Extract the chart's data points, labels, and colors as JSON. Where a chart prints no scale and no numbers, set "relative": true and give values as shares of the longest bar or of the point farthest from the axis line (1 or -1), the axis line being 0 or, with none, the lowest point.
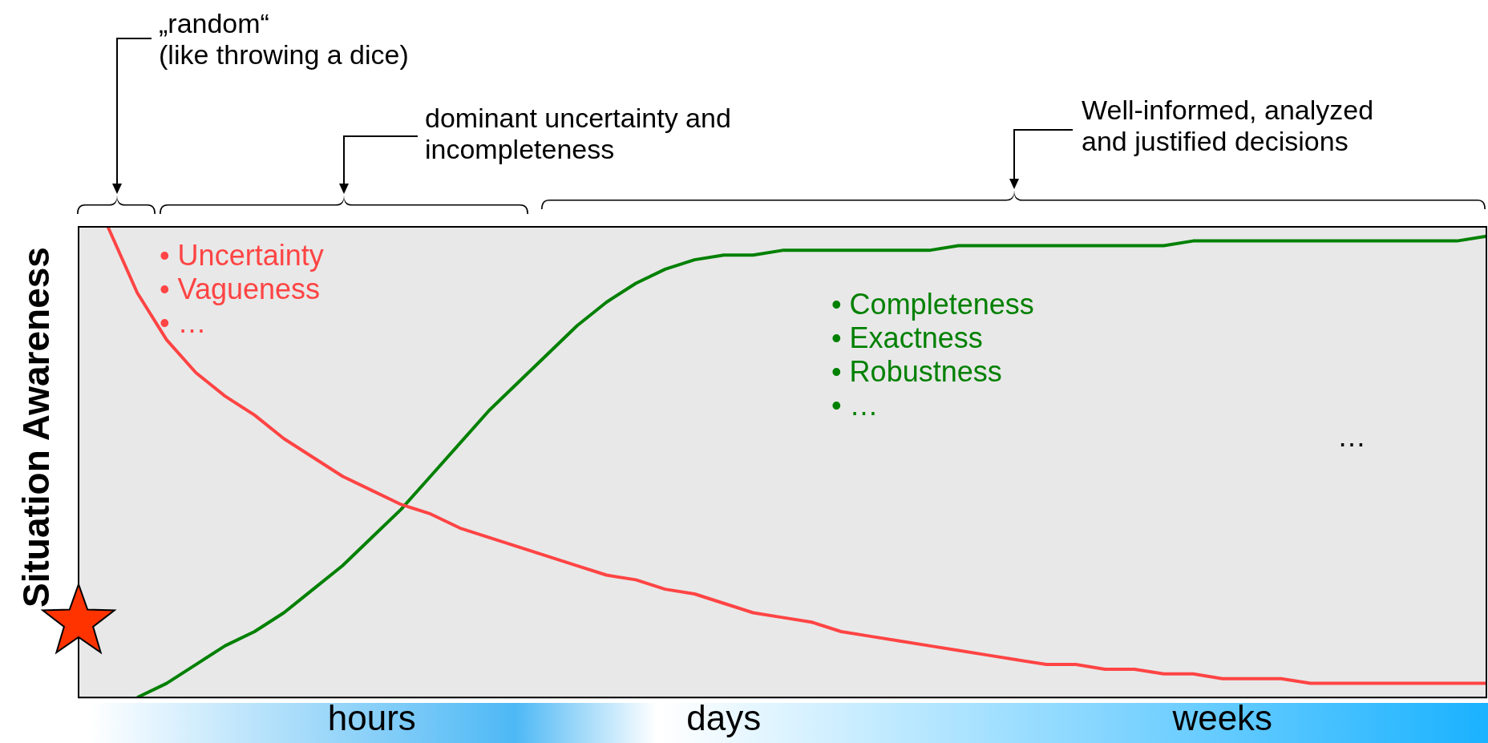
{
  "chart_data": {
    "type": "line",
    "ylabel": "Situation Awareness",
    "relative": true,
    "marker": "none",
    "line_style": "solid",
    "categories": [
      null,
      null,
      null,
      null,
      null,
      null,
      null,
      null,
      null,
      null,
      "hours",
      null,
      null,
      null,
      null,
      null,
      null,
      null,
      null,
      null,
      null,
      null,
      "days",
      null,
      null,
      null,
      null,
      null,
      null,
      null,
      null,
      null,
      null,
      null,
      null,
      null,
      null,
      null,
      null,
      "weeks",
      null,
      null,
      null,
      null,
      null,
      null,
      null,
      null,
      null
    ],
    "series": [
      {
        "color": "#ff4444",
        "values": [
          null,
          1.0,
          0.86,
          0.76,
          0.69,
          0.64,
          0.6,
          0.55,
          0.51,
          0.47,
          0.44,
          0.41,
          0.39,
          0.36,
          0.34,
          0.32,
          0.3,
          0.28,
          0.26,
          0.25,
          0.23,
          0.22,
          0.2,
          0.18,
          0.17,
          0.16,
          0.14,
          0.13,
          0.12,
          0.11,
          0.1,
          0.09,
          0.08,
          0.07,
          0.07,
          0.06,
          0.06,
          0.05,
          0.05,
          0.04,
          0.04,
          0.04,
          0.03,
          0.03,
          0.03,
          0.03,
          0.03,
          0.03,
          0.03
        ]
      },
      {
        "color": "#008000",
        "values": [
          null,
          null,
          0,
          0.03,
          0.07,
          0.11,
          0.14,
          0.18,
          0.23,
          0.28,
          0.34,
          0.4,
          0.47,
          0.54,
          0.61,
          0.67,
          0.73,
          0.79,
          0.84,
          0.88,
          0.91,
          0.93,
          0.94,
          0.94,
          0.95,
          0.95,
          0.95,
          0.95,
          0.95,
          0.95,
          0.96,
          0.96,
          0.96,
          0.96,
          0.96,
          0.96,
          0.96,
          0.96,
          0.97,
          0.97,
          0.97,
          0.97,
          0.97,
          0.97,
          0.97,
          0.97,
          0.97,
          0.97,
          0.98
        ]
      }
    ],
    "annotations": [
      "„random“\n(like throwing a dice)",
      "dominant uncertainty and\nincompleteness",
      "Well-informed, analyzed\nand justified decisions",
      "• Uncertainty",
      "• Vagueness",
      "• …",
      "• Completeness",
      "• Exactness",
      "• Robustness",
      "• …",
      "…"
    ]
  }
}
